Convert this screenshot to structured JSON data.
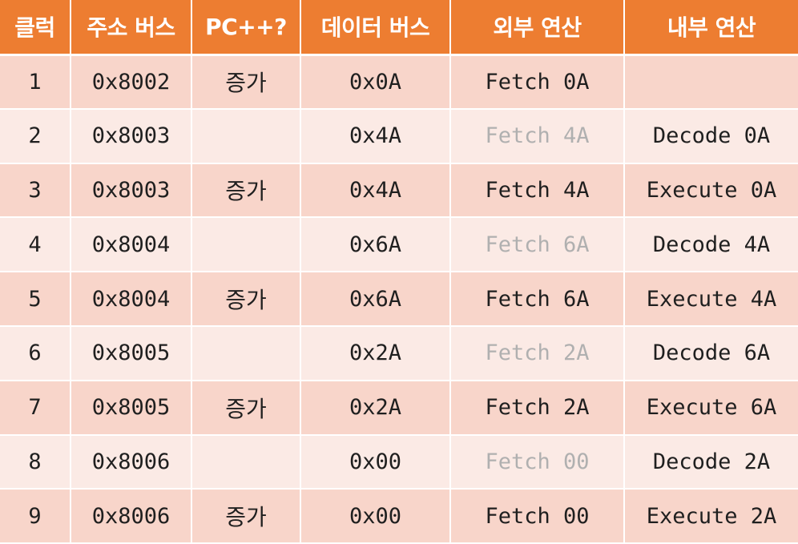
{
  "headers": {
    "clock": "클럭",
    "address_bus": "주소 버스",
    "pc_inc": "PC++?",
    "data_bus": "데이터 버스",
    "external_op": "외부 연산",
    "internal_op": "내부 연산"
  },
  "rows": [
    {
      "clock": "1",
      "address": "0x8002",
      "pc": "증가",
      "data": "0x0A",
      "external": "Fetch 0A",
      "internal": ""
    },
    {
      "clock": "2",
      "address": "0x8003",
      "pc": "",
      "data": "0x4A",
      "external": "Fetch 4A",
      "internal": "Decode 0A"
    },
    {
      "clock": "3",
      "address": "0x8003",
      "pc": "증가",
      "data": "0x4A",
      "external": "Fetch 4A",
      "internal": "Execute 0A"
    },
    {
      "clock": "4",
      "address": "0x8004",
      "pc": "",
      "data": "0x6A",
      "external": "Fetch 6A",
      "internal": "Decode 4A"
    },
    {
      "clock": "5",
      "address": "0x8004",
      "pc": "증가",
      "data": "0x6A",
      "external": "Fetch 6A",
      "internal": "Execute 4A"
    },
    {
      "clock": "6",
      "address": "0x8005",
      "pc": "",
      "data": "0x2A",
      "external": "Fetch 2A",
      "internal": "Decode 6A"
    },
    {
      "clock": "7",
      "address": "0x8005",
      "pc": "증가",
      "data": "0x2A",
      "external": "Fetch 2A",
      "internal": "Execute 6A"
    },
    {
      "clock": "8",
      "address": "0x8006",
      "pc": "",
      "data": "0x00",
      "external": "Fetch 00",
      "internal": "Decode 2A"
    },
    {
      "clock": "9",
      "address": "0x8006",
      "pc": "증가",
      "data": "0x00",
      "external": "Fetch 00",
      "internal": "Execute 2A"
    }
  ],
  "colors": {
    "header_bg": "#ed7d31",
    "header_text": "#ffffff",
    "row_odd_bg": "#f8d5ca",
    "row_even_bg": "#fbeae5",
    "text": "#1f1f1f",
    "dimmed_text": "#b0b0b0"
  },
  "dimmed_external_rows": [
    "2",
    "4",
    "6",
    "8"
  ]
}
